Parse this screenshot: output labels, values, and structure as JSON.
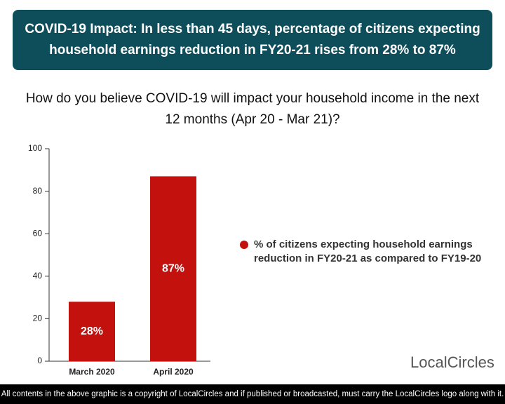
{
  "header": {
    "title": "COVID-19 Impact: In less than 45 days, percentage of citizens expecting household earnings reduction in FY20-21 rises from 28% to 87%"
  },
  "chart_data": {
    "type": "bar",
    "subtitle": "How do you believe COVID-19 will impact your household income in the next 12 months (Apr 20 - Mar 21)?",
    "categories": [
      "March 2020",
      "April 2020"
    ],
    "series": [
      {
        "name": "% of citizens expecting household earnings reduction in FY20-21 as compared to FY19-20",
        "color": "#c3120e",
        "values": [
          28,
          87
        ],
        "value_labels": [
          "28%",
          "87%"
        ]
      }
    ],
    "ylim": [
      0,
      100
    ],
    "yticks": [
      0,
      20,
      40,
      60,
      80,
      100
    ],
    "legend": "right"
  },
  "logo": "LocalCircles",
  "footer": "All contents in the above graphic is a copyright of LocalCircles and if published or broadcasted, must carry the LocalCircles logo along with it."
}
